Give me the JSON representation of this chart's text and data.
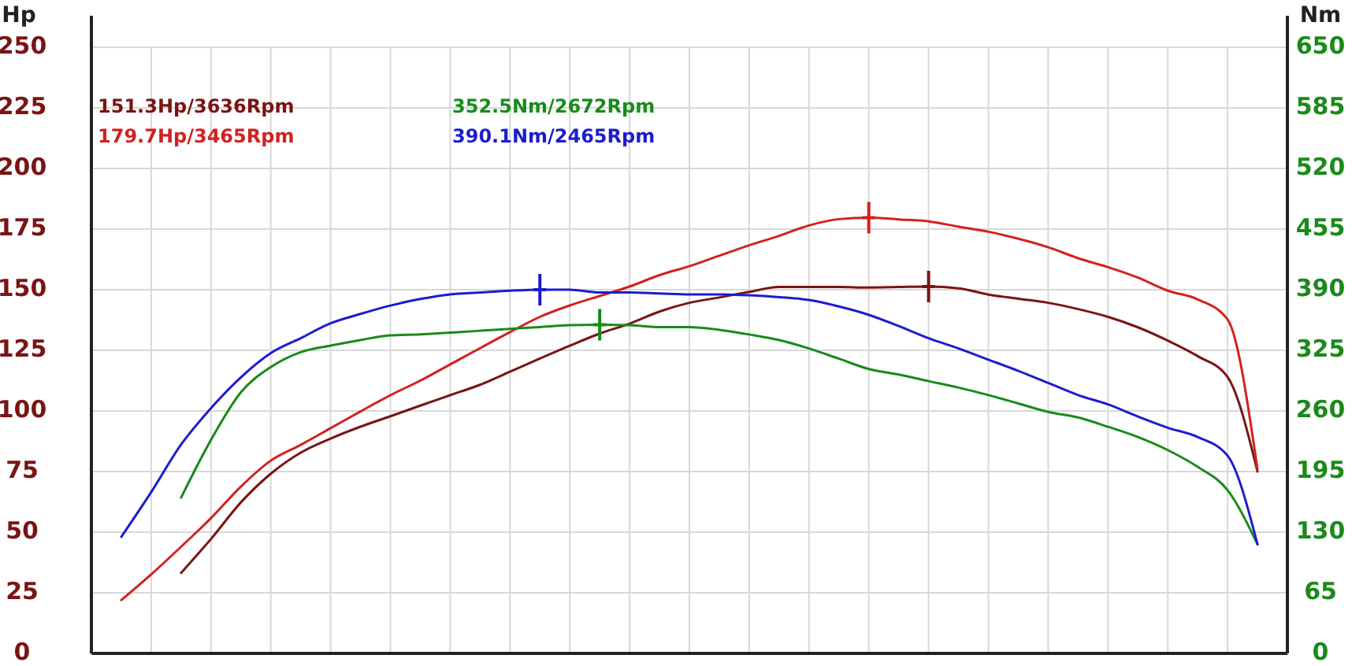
{
  "chart_data": {
    "type": "line",
    "ylabel": "Hp",
    "y2label": "Nm",
    "categories": [
      null,
      null,
      null,
      null,
      null,
      null,
      null,
      null,
      null,
      null,
      null,
      null,
      null,
      null,
      null,
      null,
      null,
      null,
      null,
      null,
      null,
      null,
      null,
      null,
      null,
      null,
      null,
      null,
      null,
      null,
      null,
      null,
      null,
      null,
      null,
      null,
      null,
      null,
      null,
      null,
      null
    ],
    "ylim": [
      0,
      250
    ],
    "yticks": [
      0,
      25,
      50,
      75,
      100,
      125,
      150,
      175,
      200,
      225,
      250
    ],
    "y2lim": [
      0,
      650
    ],
    "y2ticks": [
      0,
      65,
      130,
      195,
      260,
      325,
      390,
      455,
      520,
      585,
      650
    ],
    "grid": true,
    "legend": "top left",
    "marker": "none",
    "line_style": "solid",
    "series": [
      {
        "name": "151.3Hp/3636Rpm",
        "color": "#7a1414",
        "values": [
          null,
          null,
          null,
          33.2,
          47.2,
          62.3,
          74.1,
          82.8,
          88.6,
          93.5,
          97.8,
          102.2,
          106.5,
          110.8,
          116.2,
          121.6,
          126.9,
          131.9,
          136,
          141,
          144.6,
          146.8,
          149.1,
          151.1,
          151.1,
          151.1,
          150.9,
          151.1,
          151.3,
          150.6,
          148,
          146.3,
          144.6,
          142,
          138.8,
          134.5,
          129,
          122.6,
          114,
          75,
          null
        ]
      },
      {
        "name": "179.7Hp/3465Rpm",
        "color": "#d42020",
        "values": [
          null,
          22,
          32.6,
          44,
          55.8,
          68.8,
          79.5,
          86,
          92.9,
          99.8,
          106.5,
          112.5,
          119.2,
          125.9,
          132.5,
          138.8,
          143.5,
          147.4,
          151.3,
          156,
          159.7,
          164,
          168.3,
          172.2,
          176.5,
          179.1,
          179.7,
          179,
          178.2,
          176,
          173.9,
          171,
          167.5,
          163,
          159.3,
          155,
          149.6,
          146,
          137.7,
          76,
          null
        ]
      },
      {
        "name": "352.5Nm/2672Rpm",
        "color": "#1a8a1a",
        "axis": "y2",
        "values": [
          null,
          null,
          null,
          167,
          229,
          280,
          307,
          323,
          330,
          336,
          341,
          342,
          344,
          346,
          348,
          350,
          352,
          352.5,
          352,
          350,
          350,
          347,
          342,
          336,
          327,
          316,
          305,
          299,
          292,
          285,
          277,
          268,
          259,
          253,
          243,
          232,
          218,
          200,
          175,
          117,
          null
        ]
      },
      {
        "name": "390.1Nm/2465Rpm",
        "color": "#1c1cd0",
        "axis": "y2",
        "values": [
          null,
          125,
          173,
          224,
          263,
          296,
          322,
          338,
          354,
          364,
          373,
          380,
          385,
          387,
          389,
          390.1,
          390,
          387,
          387,
          386,
          385,
          385,
          384,
          382,
          379,
          372,
          363,
          351,
          338,
          327,
          315,
          303,
          290,
          277,
          267,
          254,
          242,
          232,
          212,
          117,
          null
        ]
      },
      {
        "type": "scatter",
        "marker": "cross",
        "color": "#d42020",
        "values": [
          null,
          null,
          null,
          null,
          null,
          null,
          null,
          null,
          null,
          null,
          null,
          null,
          null,
          null,
          null,
          null,
          null,
          null,
          null,
          null,
          null,
          null,
          null,
          null,
          null,
          null,
          179.7,
          null,
          null,
          null,
          null,
          null,
          null,
          null,
          null,
          null,
          null,
          null,
          null,
          null,
          null
        ]
      },
      {
        "type": "scatter",
        "marker": "cross",
        "color": "#7a1414",
        "values": [
          null,
          null,
          null,
          null,
          null,
          null,
          null,
          null,
          null,
          null,
          null,
          null,
          null,
          null,
          null,
          null,
          null,
          null,
          null,
          null,
          null,
          null,
          null,
          null,
          null,
          null,
          null,
          null,
          151.3,
          null,
          null,
          null,
          null,
          null,
          null,
          null,
          null,
          null,
          null,
          null,
          null
        ]
      },
      {
        "type": "scatter",
        "marker": "cross",
        "color": "#1a8a1a",
        "axis": "y2",
        "values": [
          null,
          null,
          null,
          null,
          null,
          null,
          null,
          null,
          null,
          null,
          null,
          null,
          null,
          null,
          null,
          null,
          null,
          352.5,
          null,
          null,
          null,
          null,
          null,
          null,
          null,
          null,
          null,
          null,
          null,
          null,
          null,
          null,
          null,
          null,
          null,
          null,
          null,
          null,
          null,
          null,
          null
        ]
      },
      {
        "type": "scatter",
        "marker": "cross",
        "color": "#1c1cd0",
        "axis": "y2",
        "values": [
          null,
          null,
          null,
          null,
          null,
          null,
          null,
          null,
          null,
          null,
          null,
          null,
          null,
          null,
          null,
          390.1,
          null,
          null,
          null,
          null,
          null,
          null,
          null,
          null,
          null,
          null,
          null,
          null,
          null,
          null,
          null,
          null,
          null,
          null,
          null,
          null,
          null,
          null,
          null,
          null,
          null
        ]
      }
    ]
  }
}
